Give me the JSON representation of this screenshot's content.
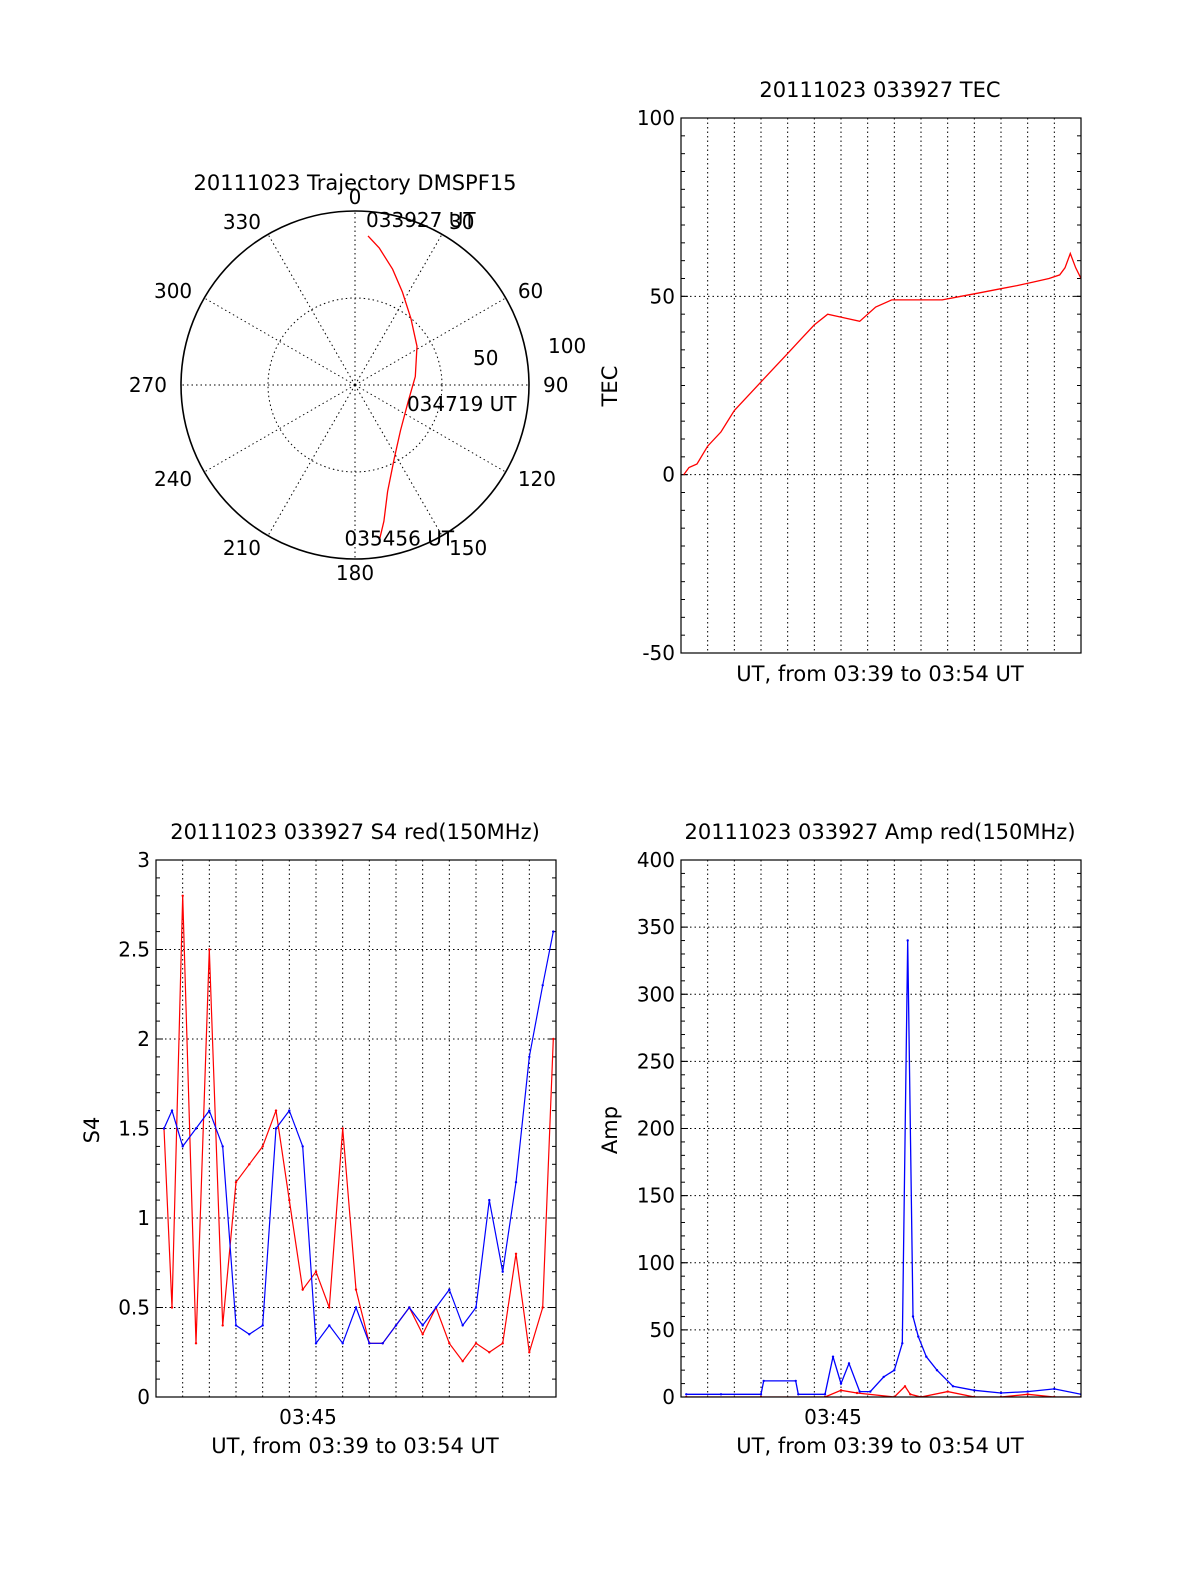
{
  "chart_data": [
    {
      "type": "polar",
      "title": "20111023 Trajectory DMSPF15",
      "angle_labels": [
        "0",
        "30",
        "60",
        "90",
        "120",
        "150",
        "180",
        "210",
        "240",
        "270",
        "300",
        "330"
      ],
      "radius_labels": [
        "50",
        "100"
      ],
      "rlim": [
        0,
        100
      ],
      "grid": true,
      "series": [
        {
          "color": "#ff0000",
          "points": [
            {
              "az": 5,
              "r": 86
            },
            {
              "az": 10,
              "r": 80
            },
            {
              "az": 18,
              "r": 70
            },
            {
              "az": 27,
              "r": 60
            },
            {
              "az": 40,
              "r": 50
            },
            {
              "az": 58,
              "r": 42
            },
            {
              "az": 82,
              "r": 35
            },
            {
              "az": 108,
              "r": 32
            },
            {
              "az": 135,
              "r": 37
            },
            {
              "az": 152,
              "r": 48
            },
            {
              "az": 163,
              "r": 64
            },
            {
              "az": 168,
              "r": 80
            },
            {
              "az": 171,
              "r": 90
            }
          ]
        }
      ],
      "annotations": [
        {
          "text": "033927 UT",
          "az": 5,
          "r": 86
        },
        {
          "text": "034719 UT",
          "az": 108,
          "r": 32
        },
        {
          "text": "035456 UT",
          "az": 171,
          "r": 90
        }
      ]
    },
    {
      "type": "line",
      "title": "20111023 033927 TEC",
      "xlabel": "UT, from 03:39 to 03:54 UT",
      "ylabel": "TEC",
      "xlim": [
        0,
        15
      ],
      "ylim": [
        -50,
        100
      ],
      "yticks": [
        -50,
        0,
        50,
        100
      ],
      "grid": true,
      "series": [
        {
          "color": "#ff0000",
          "x": [
            0.1,
            0.3,
            0.6,
            1.0,
            1.5,
            2.0,
            2.5,
            3.0,
            3.5,
            4.0,
            4.5,
            5.0,
            5.5,
            6.1,
            6.7,
            7.3,
            7.9,
            8.5,
            9.2,
            9.8,
            10.5,
            11.2,
            11.9,
            12.6,
            13.2,
            13.8,
            14.2,
            14.4,
            14.6,
            14.8,
            15.0
          ],
          "y": [
            0,
            2,
            3,
            8,
            12,
            18,
            22,
            26,
            30,
            34,
            38,
            42,
            45,
            44,
            43,
            47,
            49,
            49,
            49,
            49,
            50,
            51,
            52,
            53,
            54,
            55,
            56,
            58,
            62,
            58,
            55
          ]
        }
      ]
    },
    {
      "type": "line",
      "title": "20111023 033927 S4 red(150MHz)",
      "xlabel": "UT, from 03:39 to 03:54 UT",
      "ylabel": "S4",
      "xticklabels": [
        "03:45"
      ],
      "xlim": [
        0,
        15
      ],
      "ylim": [
        0,
        3
      ],
      "yticks": [
        0,
        0.5,
        1,
        1.5,
        2,
        2.5,
        3
      ],
      "grid": true,
      "series": [
        {
          "color": "#ff0000",
          "x": [
            0.3,
            0.6,
            1.0,
            1.5,
            2.0,
            2.5,
            3.0,
            3.5,
            4.0,
            4.5,
            5.0,
            5.5,
            6.0,
            6.5,
            7.0,
            7.5,
            8.0,
            8.5,
            9.0,
            9.5,
            10.0,
            10.5,
            11.0,
            11.5,
            12.0,
            12.5,
            13.0,
            13.5,
            14.0,
            14.5,
            14.9
          ],
          "y": [
            1.5,
            0.5,
            2.8,
            0.3,
            2.5,
            0.4,
            1.2,
            1.3,
            1.4,
            1.6,
            1.1,
            0.6,
            0.7,
            0.5,
            1.5,
            0.6,
            0.3,
            0.3,
            0.4,
            0.5,
            0.35,
            0.5,
            0.3,
            0.2,
            0.3,
            0.25,
            0.3,
            0.8,
            0.25,
            0.5,
            2.0
          ]
        },
        {
          "color": "#0000ff",
          "x": [
            0.3,
            0.6,
            1.0,
            1.5,
            2.0,
            2.5,
            3.0,
            3.5,
            4.0,
            4.5,
            5.0,
            5.5,
            6.0,
            6.5,
            7.0,
            7.5,
            8.0,
            8.5,
            9.0,
            9.5,
            10.0,
            10.5,
            11.0,
            11.5,
            12.0,
            12.5,
            13.0,
            13.5,
            14.0,
            14.5,
            14.9
          ],
          "y": [
            1.5,
            1.6,
            1.4,
            1.5,
            1.6,
            1.4,
            0.4,
            0.35,
            0.4,
            1.5,
            1.6,
            1.4,
            0.3,
            0.4,
            0.3,
            0.5,
            0.3,
            0.3,
            0.4,
            0.5,
            0.4,
            0.5,
            0.6,
            0.4,
            0.5,
            1.1,
            0.7,
            1.2,
            1.9,
            2.3,
            2.6
          ]
        }
      ]
    },
    {
      "type": "line",
      "title": "20111023 033927 Amp red(150MHz)",
      "xlabel": "UT, from 03:39 to 03:54 UT",
      "ylabel": "Amp",
      "xticklabels": [
        "03:45"
      ],
      "xlim": [
        0,
        15
      ],
      "ylim": [
        0,
        400
      ],
      "yticks": [
        0,
        50,
        100,
        150,
        200,
        250,
        300,
        350,
        400
      ],
      "grid": true,
      "series": [
        {
          "color": "#0000ff",
          "x": [
            0.2,
            1.5,
            3.0,
            3.1,
            4.3,
            4.4,
            5.4,
            5.7,
            6.0,
            6.3,
            6.7,
            7.1,
            7.6,
            8.0,
            8.3,
            8.5,
            8.7,
            8.9,
            9.2,
            9.6,
            10.2,
            11.0,
            12.0,
            13.0,
            14.0,
            15.0
          ],
          "y": [
            2,
            2,
            2,
            12,
            12,
            2,
            2,
            30,
            10,
            25,
            4,
            4,
            15,
            20,
            40,
            340,
            60,
            45,
            30,
            20,
            8,
            5,
            3,
            4,
            6,
            2
          ]
        },
        {
          "color": "#ff0000",
          "x": [
            0.2,
            3.0,
            5.4,
            6.0,
            6.6,
            8.0,
            8.4,
            8.6,
            9.0,
            10.0,
            11.0,
            12.0,
            13.0,
            14.0,
            15.0
          ],
          "y": [
            0,
            0,
            0,
            5,
            3,
            0,
            8,
            2,
            0,
            4,
            0,
            0,
            2,
            0,
            0
          ]
        }
      ]
    }
  ]
}
